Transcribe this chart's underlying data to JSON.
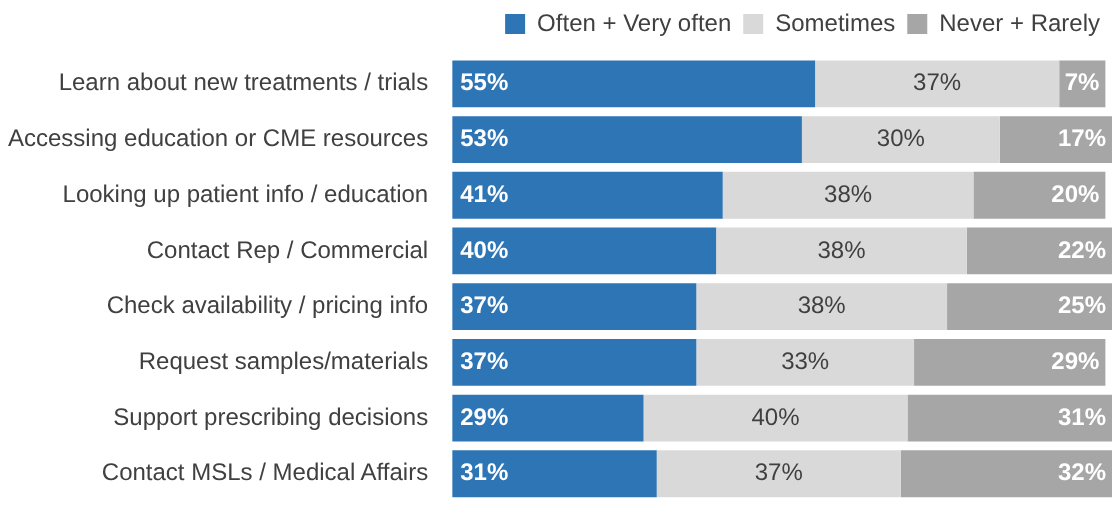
{
  "chart_data": {
    "type": "bar",
    "orientation": "horizontal",
    "stacked": true,
    "legend": "top",
    "tick_labels": "y",
    "grid": false,
    "xlim": [
      0,
      100
    ],
    "categories": [
      "Learn about new treatments / trials",
      "Accessing education or CME resources",
      "Looking up patient info / education",
      "Contact Rep / Commercial",
      "Check availability / pricing info",
      "Request samples/materials",
      "Support prescribing decisions",
      "Contact MSLs / Medical Affairs"
    ],
    "series": [
      {
        "name": "Often + Very often",
        "color": "#2e75b6",
        "values": [
          55,
          53,
          41,
          40,
          37,
          37,
          29,
          31
        ],
        "value_labels": [
          "55%",
          "53%",
          "41%",
          "40%",
          "37%",
          "37%",
          "29%",
          "31%"
        ]
      },
      {
        "name": "Sometimes",
        "color": "#d9d9d9",
        "values": [
          37,
          30,
          38,
          38,
          38,
          33,
          40,
          37
        ],
        "value_labels": [
          "37%",
          "30%",
          "38%",
          "38%",
          "38%",
          "33%",
          "40%",
          "37%"
        ]
      },
      {
        "name": "Never + Rarely",
        "color": "#a6a6a6",
        "values": [
          7,
          17,
          20,
          22,
          25,
          29,
          31,
          32
        ],
        "value_labels": [
          "7%",
          "17%",
          "20%",
          "22%",
          "25%",
          "29%",
          "31%",
          "32%"
        ]
      }
    ]
  }
}
